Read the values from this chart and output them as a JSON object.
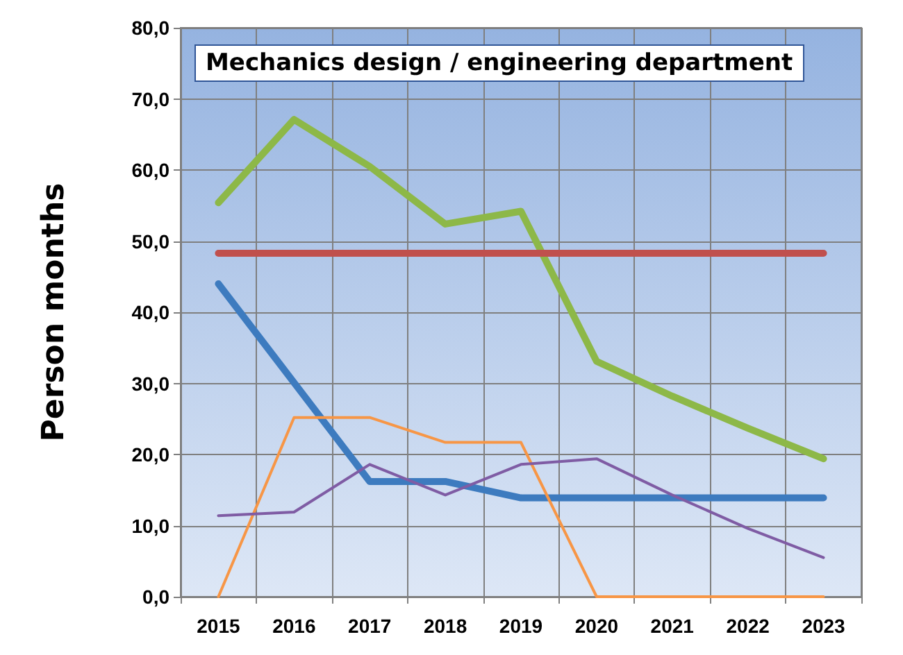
{
  "chart_data": {
    "type": "line",
    "title": "Mechanics design / engineering department",
    "ylabel": "Person months",
    "categories": [
      "2015",
      "2016",
      "2017",
      "2018",
      "2019",
      "2020",
      "2021",
      "2022",
      "2023"
    ],
    "series": [
      {
        "color": "#8db848",
        "values": [
          55.4,
          67.1,
          60.5,
          52.4,
          54.2,
          33.1,
          28.2,
          23.7,
          19.4
        ]
      },
      {
        "color": "#c0504d",
        "values": [
          48.3,
          48.3,
          48.3,
          48.3,
          48.3,
          48.3,
          48.3,
          48.3,
          48.3
        ]
      },
      {
        "color": "#3d7bbf",
        "values": [
          44.0,
          30.1,
          16.2,
          16.2,
          13.9,
          13.9,
          13.9,
          13.9,
          13.9
        ]
      },
      {
        "color": "#f79646",
        "values": [
          0,
          25.2,
          25.2,
          21.7,
          21.7,
          0,
          0,
          0,
          0
        ]
      },
      {
        "color": "#7f5ca4",
        "values": [
          11.4,
          11.9,
          18.6,
          14.3,
          18.6,
          19.4,
          14.3,
          9.6,
          5.5
        ]
      }
    ],
    "ylim": [
      0,
      80
    ],
    "yticks": [
      {
        "value": 0,
        "label": "0,0"
      },
      {
        "value": 10,
        "label": "10,0"
      },
      {
        "value": 20,
        "label": "20,0"
      },
      {
        "value": 30,
        "label": "30,0"
      },
      {
        "value": 40,
        "label": "40,0"
      },
      {
        "value": 50,
        "label": "50,0"
      },
      {
        "value": 60,
        "label": "60,0"
      },
      {
        "value": 70,
        "label": "70,0"
      },
      {
        "value": 80,
        "label": "80,0"
      }
    ],
    "grid": true,
    "marker": "none",
    "line_style": "solid"
  }
}
